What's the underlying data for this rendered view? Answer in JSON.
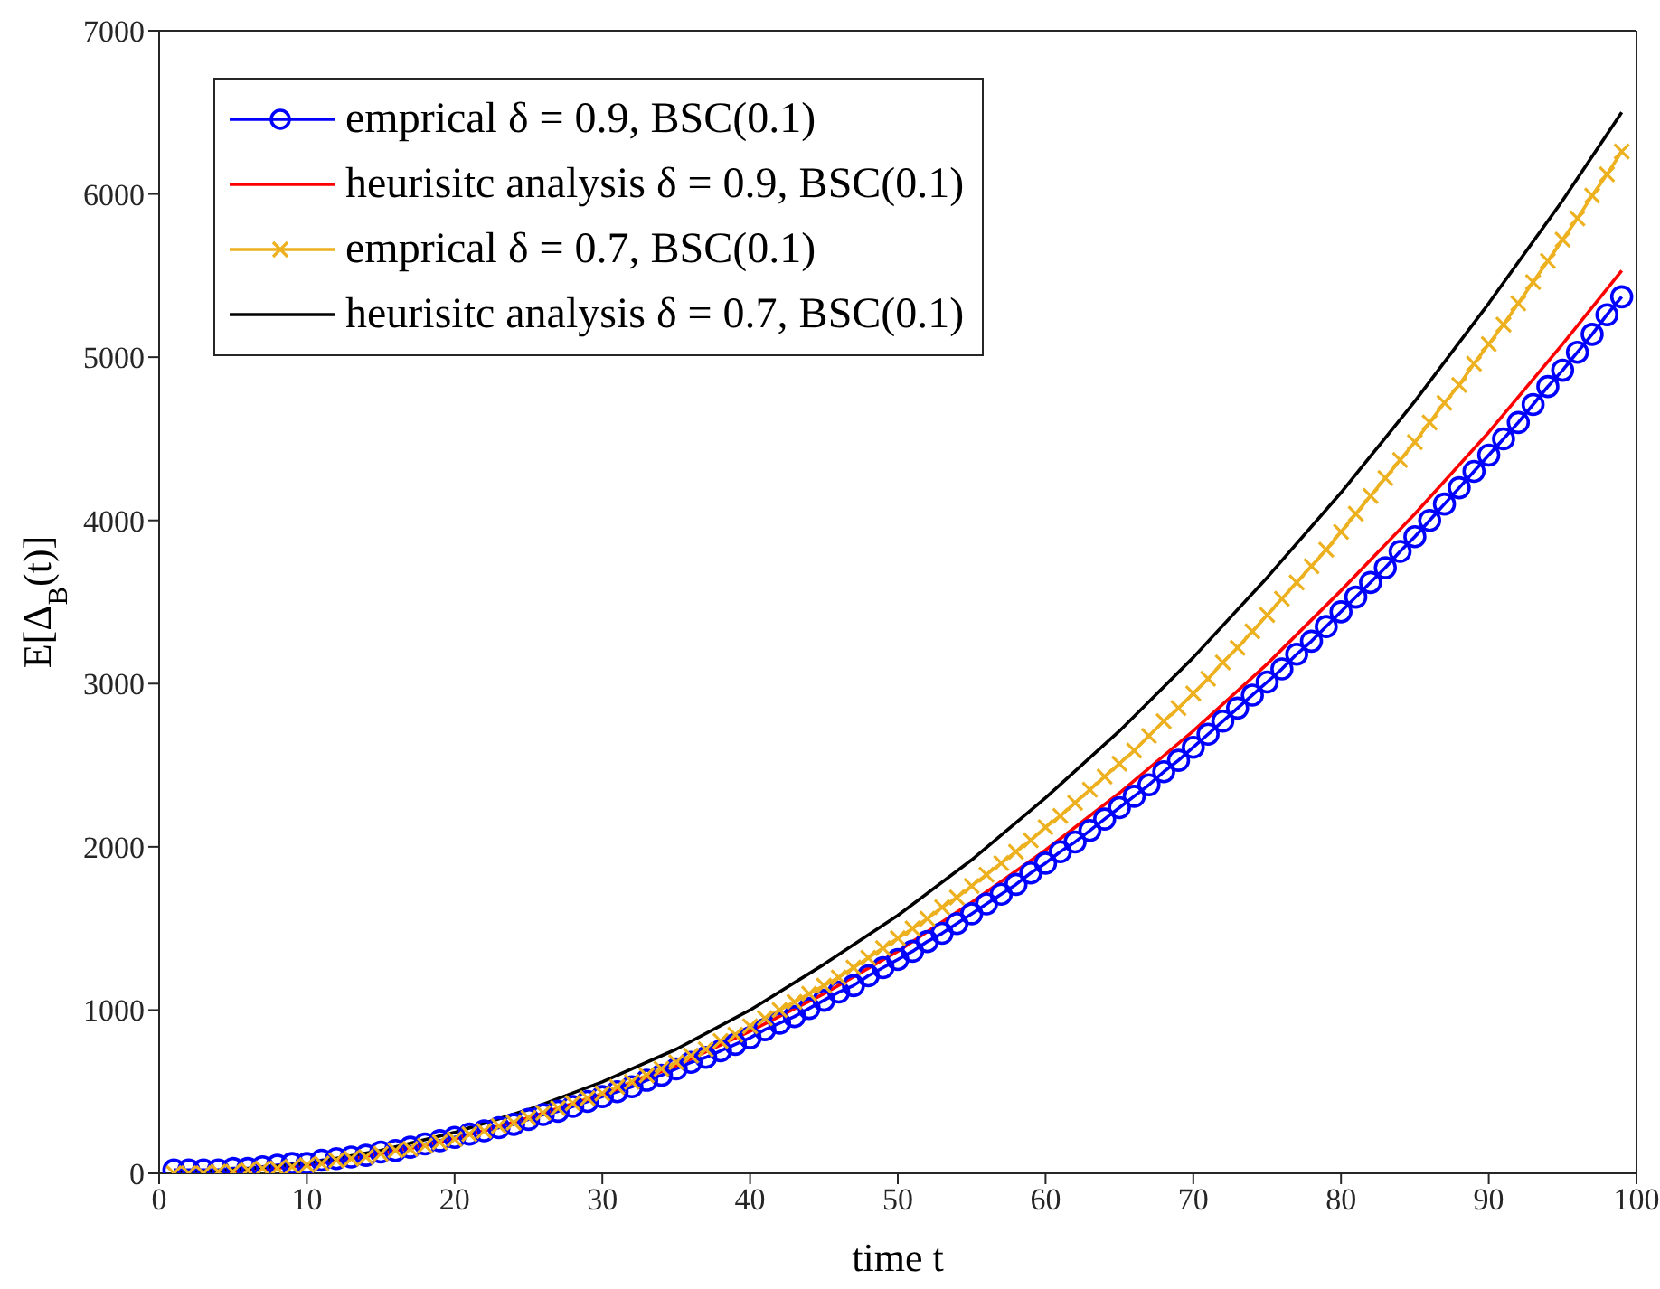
{
  "chart_data": {
    "type": "line",
    "xlabel": "time t",
    "ylabel": "E[Δ$_{B}$(t)]",
    "xlim": [
      0,
      100
    ],
    "xticks": [
      0,
      10,
      20,
      30,
      40,
      50,
      60,
      70,
      80,
      90,
      100
    ],
    "ylim": [
      0,
      7000
    ],
    "yticks": [
      0,
      1000,
      2000,
      3000,
      4000,
      5000,
      6000,
      7000
    ],
    "legend": "top left",
    "series": [
      {
        "name": "emprical δ = 0.9, BSC(0.1)",
        "color": "#0000ff",
        "marker": "circle",
        "x": [
          1,
          2,
          3,
          4,
          5,
          6,
          7,
          8,
          9,
          10,
          11,
          12,
          13,
          14,
          15,
          16,
          17,
          18,
          19,
          20,
          21,
          22,
          23,
          24,
          25,
          26,
          27,
          28,
          29,
          30,
          31,
          32,
          33,
          34,
          35,
          36,
          37,
          38,
          39,
          40,
          41,
          42,
          43,
          44,
          45,
          46,
          47,
          48,
          49,
          50,
          51,
          52,
          53,
          54,
          55,
          56,
          57,
          58,
          59,
          60,
          61,
          62,
          63,
          64,
          65,
          66,
          67,
          68,
          69,
          70,
          71,
          72,
          73,
          74,
          75,
          76,
          77,
          78,
          79,
          80,
          81,
          82,
          83,
          84,
          85,
          86,
          87,
          88,
          89,
          90,
          91,
          92,
          93,
          94,
          95,
          96,
          97,
          98,
          99
        ],
        "values": [
          20,
          20,
          20,
          20,
          30,
          30,
          40,
          50,
          60,
          60,
          80,
          90,
          100,
          110,
          130,
          140,
          160,
          180,
          200,
          220,
          240,
          260,
          280,
          300,
          330,
          360,
          380,
          410,
          440,
          470,
          500,
          530,
          570,
          600,
          640,
          680,
          710,
          750,
          790,
          830,
          880,
          920,
          960,
          1010,
          1060,
          1110,
          1150,
          1210,
          1260,
          1310,
          1360,
          1420,
          1470,
          1530,
          1590,
          1650,
          1710,
          1770,
          1840,
          1900,
          1970,
          2030,
          2100,
          2170,
          2240,
          2310,
          2380,
          2460,
          2530,
          2610,
          2690,
          2770,
          2850,
          2930,
          3010,
          3090,
          3180,
          3260,
          3350,
          3440,
          3530,
          3620,
          3710,
          3810,
          3900,
          4000,
          4100,
          4200,
          4300,
          4400,
          4500,
          4600,
          4710,
          4820,
          4920,
          5030,
          5140,
          5260,
          5370
        ]
      },
      {
        "name": "heurisitc analysis δ = 0.9, BSC(0.1)",
        "color": "#ff0000",
        "marker": "none",
        "x": [
          1,
          5,
          10,
          15,
          20,
          25,
          30,
          35,
          40,
          45,
          50,
          55,
          60,
          65,
          70,
          75,
          80,
          85,
          90,
          95,
          99
        ],
        "values": [
          0,
          10,
          50,
          120,
          210,
          340,
          480,
          660,
          870,
          1100,
          1360,
          1660,
          1980,
          2330,
          2710,
          3120,
          3570,
          4040,
          4540,
          5080,
          5530
        ]
      },
      {
        "name": "emprical δ = 0.7, BSC(0.1)",
        "color": "#edb120",
        "marker": "cross",
        "x": [
          1,
          2,
          3,
          4,
          5,
          6,
          7,
          8,
          9,
          10,
          11,
          12,
          13,
          14,
          15,
          16,
          17,
          18,
          19,
          20,
          21,
          22,
          23,
          24,
          25,
          26,
          27,
          28,
          29,
          30,
          31,
          32,
          33,
          34,
          35,
          36,
          37,
          38,
          39,
          40,
          41,
          42,
          43,
          44,
          45,
          46,
          47,
          48,
          49,
          50,
          51,
          52,
          53,
          54,
          55,
          56,
          57,
          58,
          59,
          60,
          61,
          62,
          63,
          64,
          65,
          66,
          67,
          68,
          69,
          70,
          71,
          72,
          73,
          74,
          75,
          76,
          77,
          78,
          79,
          80,
          81,
          82,
          83,
          84,
          85,
          86,
          87,
          88,
          89,
          90,
          91,
          92,
          93,
          94,
          95,
          96,
          97,
          98,
          99
        ],
        "values": [
          0,
          0,
          0,
          10,
          10,
          20,
          30,
          30,
          40,
          50,
          60,
          80,
          90,
          100,
          120,
          140,
          150,
          170,
          190,
          210,
          240,
          260,
          290,
          310,
          340,
          370,
          400,
          430,
          460,
          490,
          530,
          560,
          600,
          640,
          680,
          720,
          760,
          810,
          850,
          900,
          950,
          1000,
          1050,
          1100,
          1150,
          1200,
          1260,
          1320,
          1380,
          1440,
          1500,
          1560,
          1630,
          1690,
          1760,
          1830,
          1900,
          1970,
          2040,
          2120,
          2190,
          2270,
          2350,
          2430,
          2510,
          2590,
          2680,
          2770,
          2850,
          2940,
          3030,
          3130,
          3220,
          3320,
          3420,
          3520,
          3620,
          3720,
          3820,
          3930,
          4040,
          4150,
          4260,
          4370,
          4480,
          4600,
          4720,
          4830,
          4960,
          5080,
          5200,
          5330,
          5460,
          5590,
          5720,
          5850,
          5990,
          6120,
          6260
        ]
      },
      {
        "name": "heurisitc analysis δ = 0.7, BSC(0.1)",
        "color": "#000000",
        "marker": "none",
        "x": [
          1,
          5,
          10,
          15,
          20,
          25,
          30,
          35,
          40,
          45,
          50,
          55,
          60,
          65,
          70,
          75,
          80,
          85,
          90,
          95,
          99
        ],
        "values": [
          0,
          20,
          60,
          140,
          250,
          390,
          560,
          760,
          1000,
          1280,
          1580,
          1920,
          2300,
          2710,
          3160,
          3650,
          4170,
          4730,
          5330,
          5960,
          6500
        ]
      }
    ]
  }
}
